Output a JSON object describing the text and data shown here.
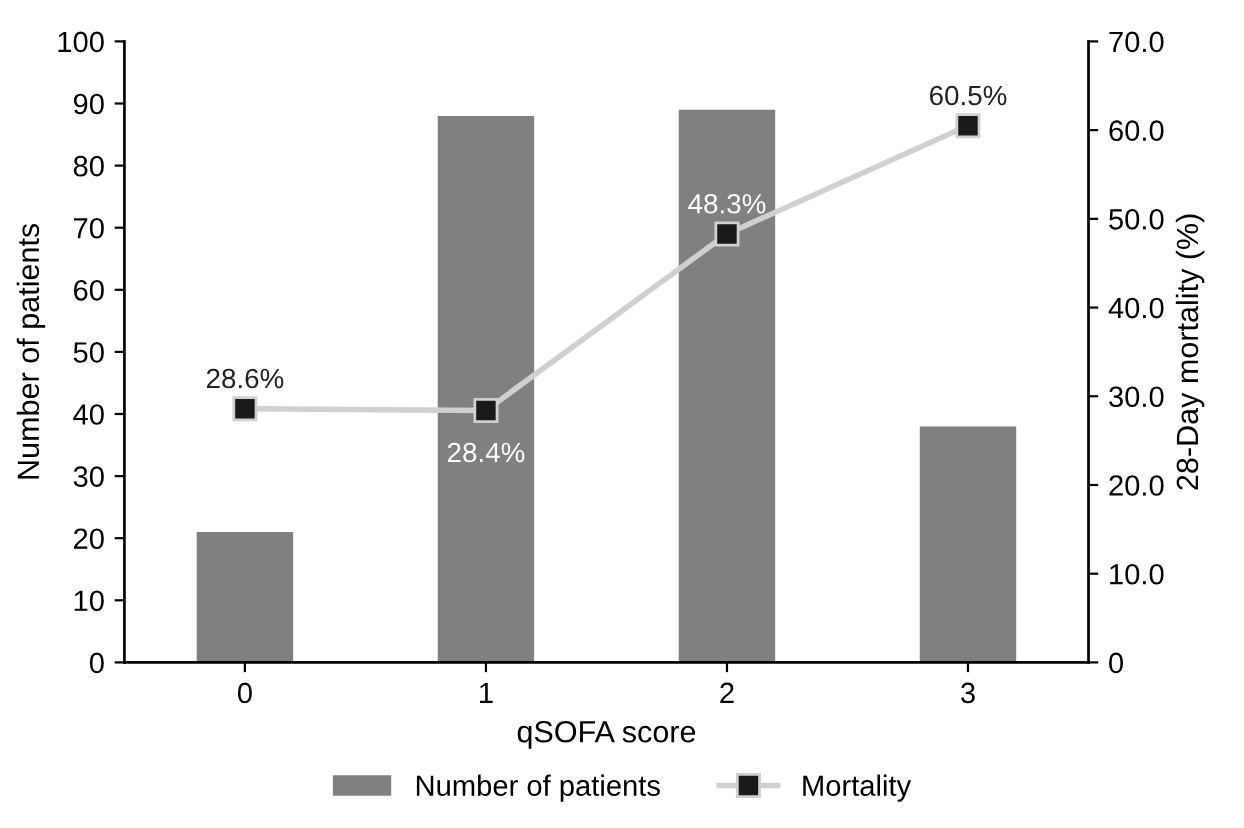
{
  "chart_data": {
    "type": "bar",
    "xlabel": "qSOFA score",
    "ylabel": "Number of patients",
    "y2label": "28-Day mortality (%)",
    "categories": [
      "0",
      "1",
      "2",
      "3"
    ],
    "series": [
      {
        "name": "Number of patients",
        "color": "#808083",
        "values": [
          21,
          88,
          89,
          38
        ]
      },
      {
        "name": "Mortality",
        "type": "line",
        "axis": "y2",
        "color": "#d0d0d0",
        "marker": "square",
        "values": [
          28.6,
          28.4,
          48.3,
          60.5
        ],
        "value_labels": [
          "28.6%",
          "28.4%",
          "48.3%",
          "60.5%"
        ]
      }
    ],
    "ylim": [
      0,
      100
    ],
    "yticks": [
      0,
      10,
      20,
      30,
      40,
      50,
      60,
      70,
      80,
      90,
      100
    ],
    "y2lim": [
      0,
      70
    ],
    "y2ticks": [
      0,
      {
        "value": 10,
        "label": "10.0"
      },
      {
        "value": 20,
        "label": "20.0"
      },
      {
        "value": 30,
        "label": "30.0"
      },
      {
        "value": 40,
        "label": "40.0"
      },
      {
        "value": 50,
        "label": "50.0"
      },
      {
        "value": 60,
        "label": "60.0"
      },
      {
        "value": 70,
        "label": "70.0"
      }
    ],
    "grid": false,
    "legend": "bottom"
  }
}
